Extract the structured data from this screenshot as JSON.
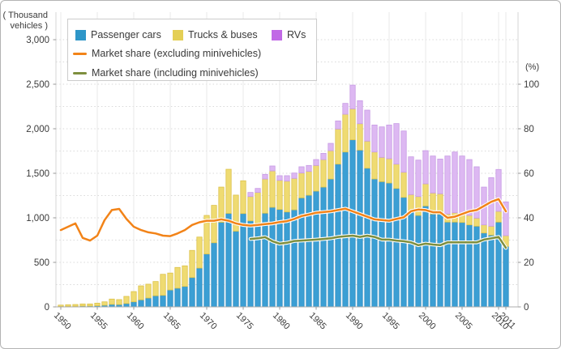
{
  "chart_data": {
    "type": "combo-stacked-bar-line",
    "title": "",
    "left_axis": {
      "unit_line1": "( Thousand",
      "unit_line2": "vehicles )",
      "tick_values": [
        3000,
        2500,
        2000,
        1500,
        1000,
        500,
        0
      ],
      "tick_labels": [
        "3,000",
        "2,500",
        "2,000",
        "1,500",
        "1,000",
        "500",
        "0"
      ],
      "range": [
        0,
        3000
      ],
      "grid_step": 250,
      "grid": "dotted"
    },
    "right_axis": {
      "unit": "(%)",
      "tick_values": [
        100,
        80,
        60,
        40,
        20,
        0
      ],
      "tick_labels": [
        "100",
        "80",
        "60",
        "40",
        "20",
        "0"
      ],
      "range": [
        0,
        100
      ]
    },
    "x_axis": {
      "tick_years": [
        1950,
        1955,
        1960,
        1965,
        1970,
        1975,
        1980,
        1985,
        1990,
        1995,
        2000,
        2005,
        2010,
        2011
      ],
      "tick_labels": [
        "1950",
        "1955",
        "1960",
        "1965",
        "1970",
        "1975",
        "1980",
        "1985",
        "1990",
        "1995",
        "2000",
        "2005",
        "2010",
        "2011"
      ]
    },
    "categories": [
      1950,
      1951,
      1952,
      1953,
      1954,
      1955,
      1956,
      1957,
      1958,
      1959,
      1960,
      1961,
      1962,
      1963,
      1964,
      1965,
      1966,
      1967,
      1968,
      1969,
      1970,
      1971,
      1972,
      1973,
      1974,
      1975,
      1976,
      1977,
      1978,
      1979,
      1980,
      1981,
      1982,
      1983,
      1984,
      1985,
      1986,
      1987,
      1988,
      1989,
      1990,
      1991,
      1992,
      1993,
      1994,
      1995,
      1996,
      1997,
      1998,
      1999,
      2000,
      2001,
      2002,
      2003,
      2004,
      2005,
      2006,
      2007,
      2008,
      2009,
      2010,
      2011
    ],
    "bar_series": [
      {
        "name": "Passenger cars",
        "fill": "#3B9FD4",
        "stroke": "#2F8DC0",
        "legend_color": "#2E96C8",
        "values": [
          5,
          6,
          8,
          10,
          10,
          13,
          18,
          28,
          26,
          38,
          57,
          79,
          100,
          125,
          130,
          190,
          210,
          230,
          330,
          436,
          594,
          720,
          950,
          1050,
          850,
          1048,
          966,
          936,
          1052,
          1118,
          1094,
          1066,
          1090,
          1224,
          1254,
          1300,
          1345,
          1436,
          1603,
          1739,
          1876,
          1760,
          1557,
          1436,
          1406,
          1391,
          1330,
          1230,
          1073,
          1027,
          1133,
          1042,
          1040,
          952,
          952,
          948,
          921,
          906,
          830,
          806,
          952,
          679
        ]
      },
      {
        "name": "Trucks & buses",
        "fill": "#EFDB72",
        "stroke": "#DCC24A",
        "legend_color": "#E4CF55",
        "values": [
          15,
          18,
          19,
          23,
          23,
          29,
          39,
          60,
          56,
          80,
          115,
          157,
          155,
          160,
          236,
          190,
          233,
          231,
          304,
          348,
          433,
          420,
          395,
          495,
          405,
          368,
          273,
          349,
          384,
          409,
          327,
          346,
          353,
          279,
          267,
          288,
          309,
          318,
          394,
          424,
          348,
          297,
          304,
          303,
          273,
          273,
          273,
          282,
          188,
          212,
          249,
          237,
          230,
          91,
          105,
          95,
          106,
          91,
          91,
          100,
          121,
          121
        ]
      },
      {
        "name": "RVs",
        "fill": "#DDB8F2",
        "stroke": "#C79BE4",
        "legend_color": "#C169E6",
        "values": [
          0,
          0,
          0,
          0,
          0,
          0,
          0,
          0,
          0,
          0,
          0,
          0,
          0,
          0,
          0,
          0,
          0,
          0,
          0,
          0,
          0,
          0,
          0,
          0,
          0,
          0,
          46,
          45,
          52,
          55,
          52,
          61,
          60,
          70,
          67,
          66,
          70,
          82,
          91,
          122,
          266,
          258,
          348,
          303,
          342,
          378,
          455,
          463,
          424,
          409,
          372,
          415,
          390,
          651,
          682,
          651,
          627,
          576,
          424,
          545,
          470,
          379
        ]
      }
    ],
    "line_series": [
      {
        "name": "Market share (excluding minivehicles)",
        "color": "#F28318",
        "values": [
          34.5,
          36,
          37.5,
          31,
          29.8,
          32,
          39,
          43.5,
          44,
          39.5,
          36,
          34.5,
          33.5,
          33,
          32,
          31.8,
          33,
          34.5,
          36.8,
          38,
          38.7,
          38.7,
          39.3,
          38.7,
          37.5,
          36.8,
          36.5,
          36.8,
          37.2,
          37.5,
          38.1,
          38.5,
          39.5,
          40.8,
          41.5,
          42.3,
          42.6,
          42.9,
          43.5,
          44.1,
          42.9,
          41.7,
          40.5,
          39.3,
          39,
          38.7,
          39.5,
          40.2,
          43,
          43.7,
          43.5,
          42.5,
          42.5,
          40,
          40.5,
          41.7,
          42.9,
          43.5,
          45.3,
          47.2,
          48.4,
          42.9
        ]
      },
      {
        "name": "Market share (including minivehicles)",
        "color": "#7E8F3E",
        "values": [
          null,
          null,
          null,
          null,
          null,
          null,
          null,
          null,
          null,
          null,
          null,
          null,
          null,
          null,
          null,
          null,
          null,
          null,
          null,
          null,
          null,
          null,
          null,
          null,
          null,
          null,
          30.5,
          30.8,
          31.3,
          29.5,
          28.4,
          28.8,
          29.6,
          29.8,
          30,
          30.2,
          30.5,
          30.8,
          31.4,
          31.7,
          32,
          31.4,
          32,
          31.4,
          30.2,
          30.2,
          29.8,
          29.5,
          29,
          27.7,
          28.4,
          28,
          27.7,
          29,
          29,
          29,
          29,
          29,
          30.2,
          30.8,
          31.4,
          26.5
        ]
      }
    ],
    "legend_position": "top-left",
    "colors": {
      "grid_dotted": "#d9d9d9",
      "grid_vertical": "#e9e9e9",
      "axis_border": "#d6d6d6",
      "axis_bottom": "#adadad",
      "text": "#3b3b3b"
    }
  }
}
